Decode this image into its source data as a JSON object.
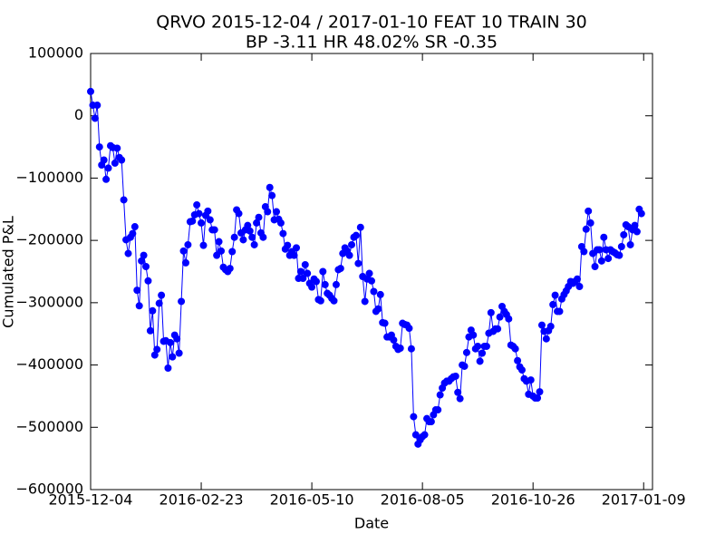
{
  "chart_data": {
    "type": "line",
    "title": "QRVO 2015-12-04 / 2017-01-10 FEAT 10 TRAIN 30",
    "subtitle": "BP -3.11 HR 48.02%  SR -0.35",
    "x_label": "Date",
    "y_label": "Cumulated P&L",
    "color": "#0000ff",
    "xlim": [
      0,
      254
    ],
    "xticks": [
      {
        "value": 0,
        "label": "2015-12-04"
      },
      {
        "value": 50,
        "label": "2016-02-23"
      },
      {
        "value": 100,
        "label": "2016-05-10"
      },
      {
        "value": 150,
        "label": "2016-08-05"
      },
      {
        "value": 200,
        "label": "2016-10-26"
      },
      {
        "value": 250,
        "label": "2017-01-09"
      }
    ],
    "ylim": [
      -600000,
      100000
    ],
    "yticks": [
      100000,
      0,
      {
        "value": -100000,
        "label": "−100000"
      },
      {
        "value": -200000,
        "label": "−200000"
      },
      {
        "value": -300000,
        "label": "−300000"
      },
      {
        "value": -400000,
        "label": "−400000"
      },
      {
        "value": -500000,
        "label": "−500000"
      },
      {
        "value": -600000,
        "label": "−600000"
      }
    ],
    "values": [
      39000,
      17000,
      -4000,
      17000,
      -50000,
      -79000,
      -71000,
      -102000,
      -84000,
      -48000,
      -51000,
      -76000,
      -52000,
      -67000,
      -71000,
      -135000,
      -199000,
      -221000,
      -195000,
      -189000,
      -178000,
      -280000,
      -305000,
      -233000,
      -224000,
      -242000,
      -265000,
      -345000,
      -313000,
      -384000,
      -375000,
      -301000,
      -288000,
      -362000,
      -361000,
      -405000,
      -364000,
      -387000,
      -352000,
      -358000,
      -381000,
      -298000,
      -217000,
      -236000,
      -207000,
      -170000,
      -169000,
      -159000,
      -143000,
      -157000,
      -172000,
      -208000,
      -160000,
      -153000,
      -167000,
      -183000,
      -183000,
      -224000,
      -202000,
      -217000,
      -243000,
      -247000,
      -250000,
      -245000,
      -218000,
      -195000,
      -151000,
      -157000,
      -188000,
      -199000,
      -183000,
      -176000,
      -185000,
      -195000,
      -207000,
      -172000,
      -163000,
      -188000,
      -195000,
      -146000,
      -154000,
      -115000,
      -128000,
      -167000,
      -154000,
      -166000,
      -172000,
      -189000,
      -214000,
      -208000,
      -224000,
      -218000,
      -224000,
      -212000,
      -261000,
      -250000,
      -261000,
      -239000,
      -253000,
      -269000,
      -275000,
      -262000,
      -266000,
      -295000,
      -297000,
      -250000,
      -271000,
      -285000,
      -288000,
      -293000,
      -297000,
      -271000,
      -247000,
      -245000,
      -221000,
      -212000,
      -217000,
      -224000,
      -207000,
      -195000,
      -192000,
      -237000,
      -179000,
      -258000,
      -298000,
      -262000,
      -253000,
      -265000,
      -282000,
      -314000,
      -310000,
      -287000,
      -332000,
      -333000,
      -355000,
      -355000,
      -352000,
      -360000,
      -370000,
      -375000,
      -373000,
      -333000,
      -335000,
      -336000,
      -341000,
      -374000,
      -483000,
      -512000,
      -527000,
      -520000,
      -515000,
      -512000,
      -486000,
      -491000,
      -491000,
      -480000,
      -472000,
      -472000,
      -448000,
      -437000,
      -429000,
      -426000,
      -426000,
      -422000,
      -419000,
      -418000,
      -444000,
      -454000,
      -400000,
      -402000,
      -380000,
      -355000,
      -344000,
      -352000,
      -374000,
      -370000,
      -394000,
      -381000,
      -370000,
      -370000,
      -349000,
      -316000,
      -346000,
      -342000,
      -342000,
      -323000,
      -306000,
      -314000,
      -319000,
      -326000,
      -368000,
      -370000,
      -374000,
      -393000,
      -403000,
      -408000,
      -422000,
      -426000,
      -447000,
      -424000,
      -450000,
      -453000,
      -453000,
      -443000,
      -336000,
      -346000,
      -358000,
      -345000,
      -338000,
      -303000,
      -288000,
      -314000,
      -314000,
      -294000,
      -287000,
      -281000,
      -274000,
      -266000,
      -269000,
      -266000,
      -262000,
      -274000,
      -210000,
      -218000,
      -182000,
      -153000,
      -172000,
      -221000,
      -242000,
      -215000,
      -215000,
      -233000,
      -195000,
      -215000,
      -229000,
      -215000,
      -218000,
      -220000,
      -223000,
      -224000,
      -210000,
      -191000,
      -175000,
      -178000,
      -207000,
      -183000,
      -176000,
      -186000,
      -150000,
      -157000
    ]
  }
}
